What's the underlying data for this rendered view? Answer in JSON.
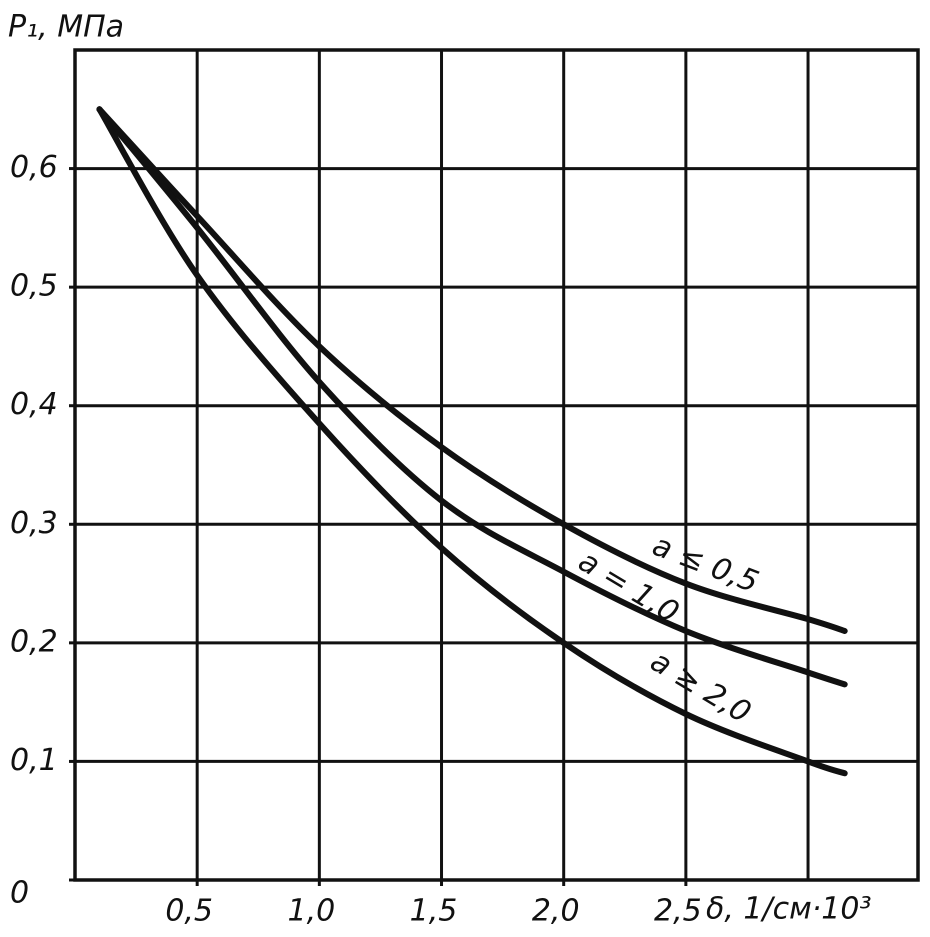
{
  "chart_data": {
    "type": "line",
    "y_label": "P₁, МПа",
    "x_label": "δ, 1/см·10³",
    "x": [
      0.1,
      0.5,
      1.0,
      1.5,
      2.0,
      2.5,
      3.0,
      3.15
    ],
    "series": [
      {
        "name": "a ≤ 0,5",
        "color": "#111111",
        "values": [
          0.65,
          0.56,
          0.45,
          0.365,
          0.3,
          0.25,
          0.22,
          0.21
        ]
      },
      {
        "name": "a = 1,0",
        "color": "#111111",
        "values": [
          0.65,
          0.55,
          0.42,
          0.32,
          0.26,
          0.21,
          0.175,
          0.165
        ]
      },
      {
        "name": "a ≥ 2,0",
        "color": "#111111",
        "values": [
          0.65,
          0.51,
          0.385,
          0.28,
          0.2,
          0.14,
          0.1,
          0.09
        ]
      }
    ],
    "xlim": [
      0,
      3.45
    ],
    "ylim": [
      0,
      0.7
    ],
    "xticks": [
      {
        "value": 0.5,
        "label": "0,5"
      },
      {
        "value": 1.0,
        "label": "1,0"
      },
      {
        "value": 1.5,
        "label": "1,5"
      },
      {
        "value": 2.0,
        "label": "2,0"
      },
      {
        "value": 2.5,
        "label": "2,5"
      }
    ],
    "yticks": [
      0,
      {
        "value": 0.1,
        "label": "0,1"
      },
      {
        "value": 0.2,
        "label": "0,2"
      },
      {
        "value": 0.3,
        "label": "0,3"
      },
      {
        "value": 0.4,
        "label": "0,4"
      },
      {
        "value": 0.5,
        "label": "0,5"
      },
      {
        "value": 0.6,
        "label": "0,6"
      }
    ],
    "xgrid": [
      0.5,
      1.0,
      1.5,
      2.0,
      2.5,
      3.0
    ],
    "ygrid": [
      0.1,
      0.2,
      0.3,
      0.4,
      0.5,
      0.6,
      0.7
    ],
    "grid": true
  }
}
